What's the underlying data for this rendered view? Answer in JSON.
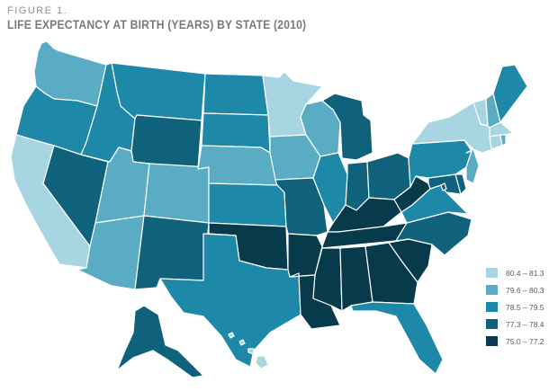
{
  "figure": {
    "label": "FIGURE 1.",
    "title": "LIFE EXPECTANCY AT BIRTH (YEARS) BY STATE (2010)"
  },
  "colors": {
    "c1": "#a8d5e2",
    "c2": "#5aacc5",
    "c3": "#1e88a8",
    "c4": "#10627c",
    "c5": "#073b4c"
  },
  "legend": [
    {
      "label": "80.4 – 81.3",
      "class": "c1"
    },
    {
      "label": "79.6 – 80.3",
      "class": "c2"
    },
    {
      "label": "78.5 – 79.5",
      "class": "c3"
    },
    {
      "label": "77.3 – 78.4",
      "class": "c4"
    },
    {
      "label": "75.0 – 77.2",
      "class": "c5"
    }
  ],
  "states": [
    {
      "abbr": "WA",
      "class": "c2"
    },
    {
      "abbr": "OR",
      "class": "c3"
    },
    {
      "abbr": "CA",
      "class": "c1"
    },
    {
      "abbr": "NV",
      "class": "c4"
    },
    {
      "abbr": "ID",
      "class": "c3"
    },
    {
      "abbr": "MT",
      "class": "c3"
    },
    {
      "abbr": "WY",
      "class": "c4"
    },
    {
      "abbr": "UT",
      "class": "c2"
    },
    {
      "abbr": "AZ",
      "class": "c2"
    },
    {
      "abbr": "CO",
      "class": "c2"
    },
    {
      "abbr": "NM",
      "class": "c4"
    },
    {
      "abbr": "ND",
      "class": "c3"
    },
    {
      "abbr": "SD",
      "class": "c3"
    },
    {
      "abbr": "NE",
      "class": "c2"
    },
    {
      "abbr": "KS",
      "class": "c3"
    },
    {
      "abbr": "OK",
      "class": "c5"
    },
    {
      "abbr": "TX",
      "class": "c3"
    },
    {
      "abbr": "MN",
      "class": "c1"
    },
    {
      "abbr": "IA",
      "class": "c2"
    },
    {
      "abbr": "MO",
      "class": "c4"
    },
    {
      "abbr": "AR",
      "class": "c5"
    },
    {
      "abbr": "LA",
      "class": "c5"
    },
    {
      "abbr": "WI",
      "class": "c2"
    },
    {
      "abbr": "IL",
      "class": "c3"
    },
    {
      "abbr": "MI",
      "class": "c4"
    },
    {
      "abbr": "IN",
      "class": "c4"
    },
    {
      "abbr": "OH",
      "class": "c4"
    },
    {
      "abbr": "KY",
      "class": "c5"
    },
    {
      "abbr": "TN",
      "class": "c5"
    },
    {
      "abbr": "MS",
      "class": "c5"
    },
    {
      "abbr": "AL",
      "class": "c5"
    },
    {
      "abbr": "GA",
      "class": "c5"
    },
    {
      "abbr": "FL",
      "class": "c3"
    },
    {
      "abbr": "SC",
      "class": "c5"
    },
    {
      "abbr": "NC",
      "class": "c4"
    },
    {
      "abbr": "VA",
      "class": "c3"
    },
    {
      "abbr": "WV",
      "class": "c5"
    },
    {
      "abbr": "PA",
      "class": "c3"
    },
    {
      "abbr": "NY",
      "class": "c1"
    },
    {
      "abbr": "VT",
      "class": "c1"
    },
    {
      "abbr": "NH",
      "class": "c2"
    },
    {
      "abbr": "ME",
      "class": "c3"
    },
    {
      "abbr": "MA",
      "class": "c1"
    },
    {
      "abbr": "CT",
      "class": "c1"
    },
    {
      "abbr": "RI",
      "class": "c2"
    },
    {
      "abbr": "NJ",
      "class": "c2"
    },
    {
      "abbr": "DE",
      "class": "c4"
    },
    {
      "abbr": "MD",
      "class": "c4"
    },
    {
      "abbr": "DC",
      "class": "c4"
    },
    {
      "abbr": "AK",
      "class": "c4"
    },
    {
      "abbr": "HI",
      "class": "c1"
    }
  ]
}
